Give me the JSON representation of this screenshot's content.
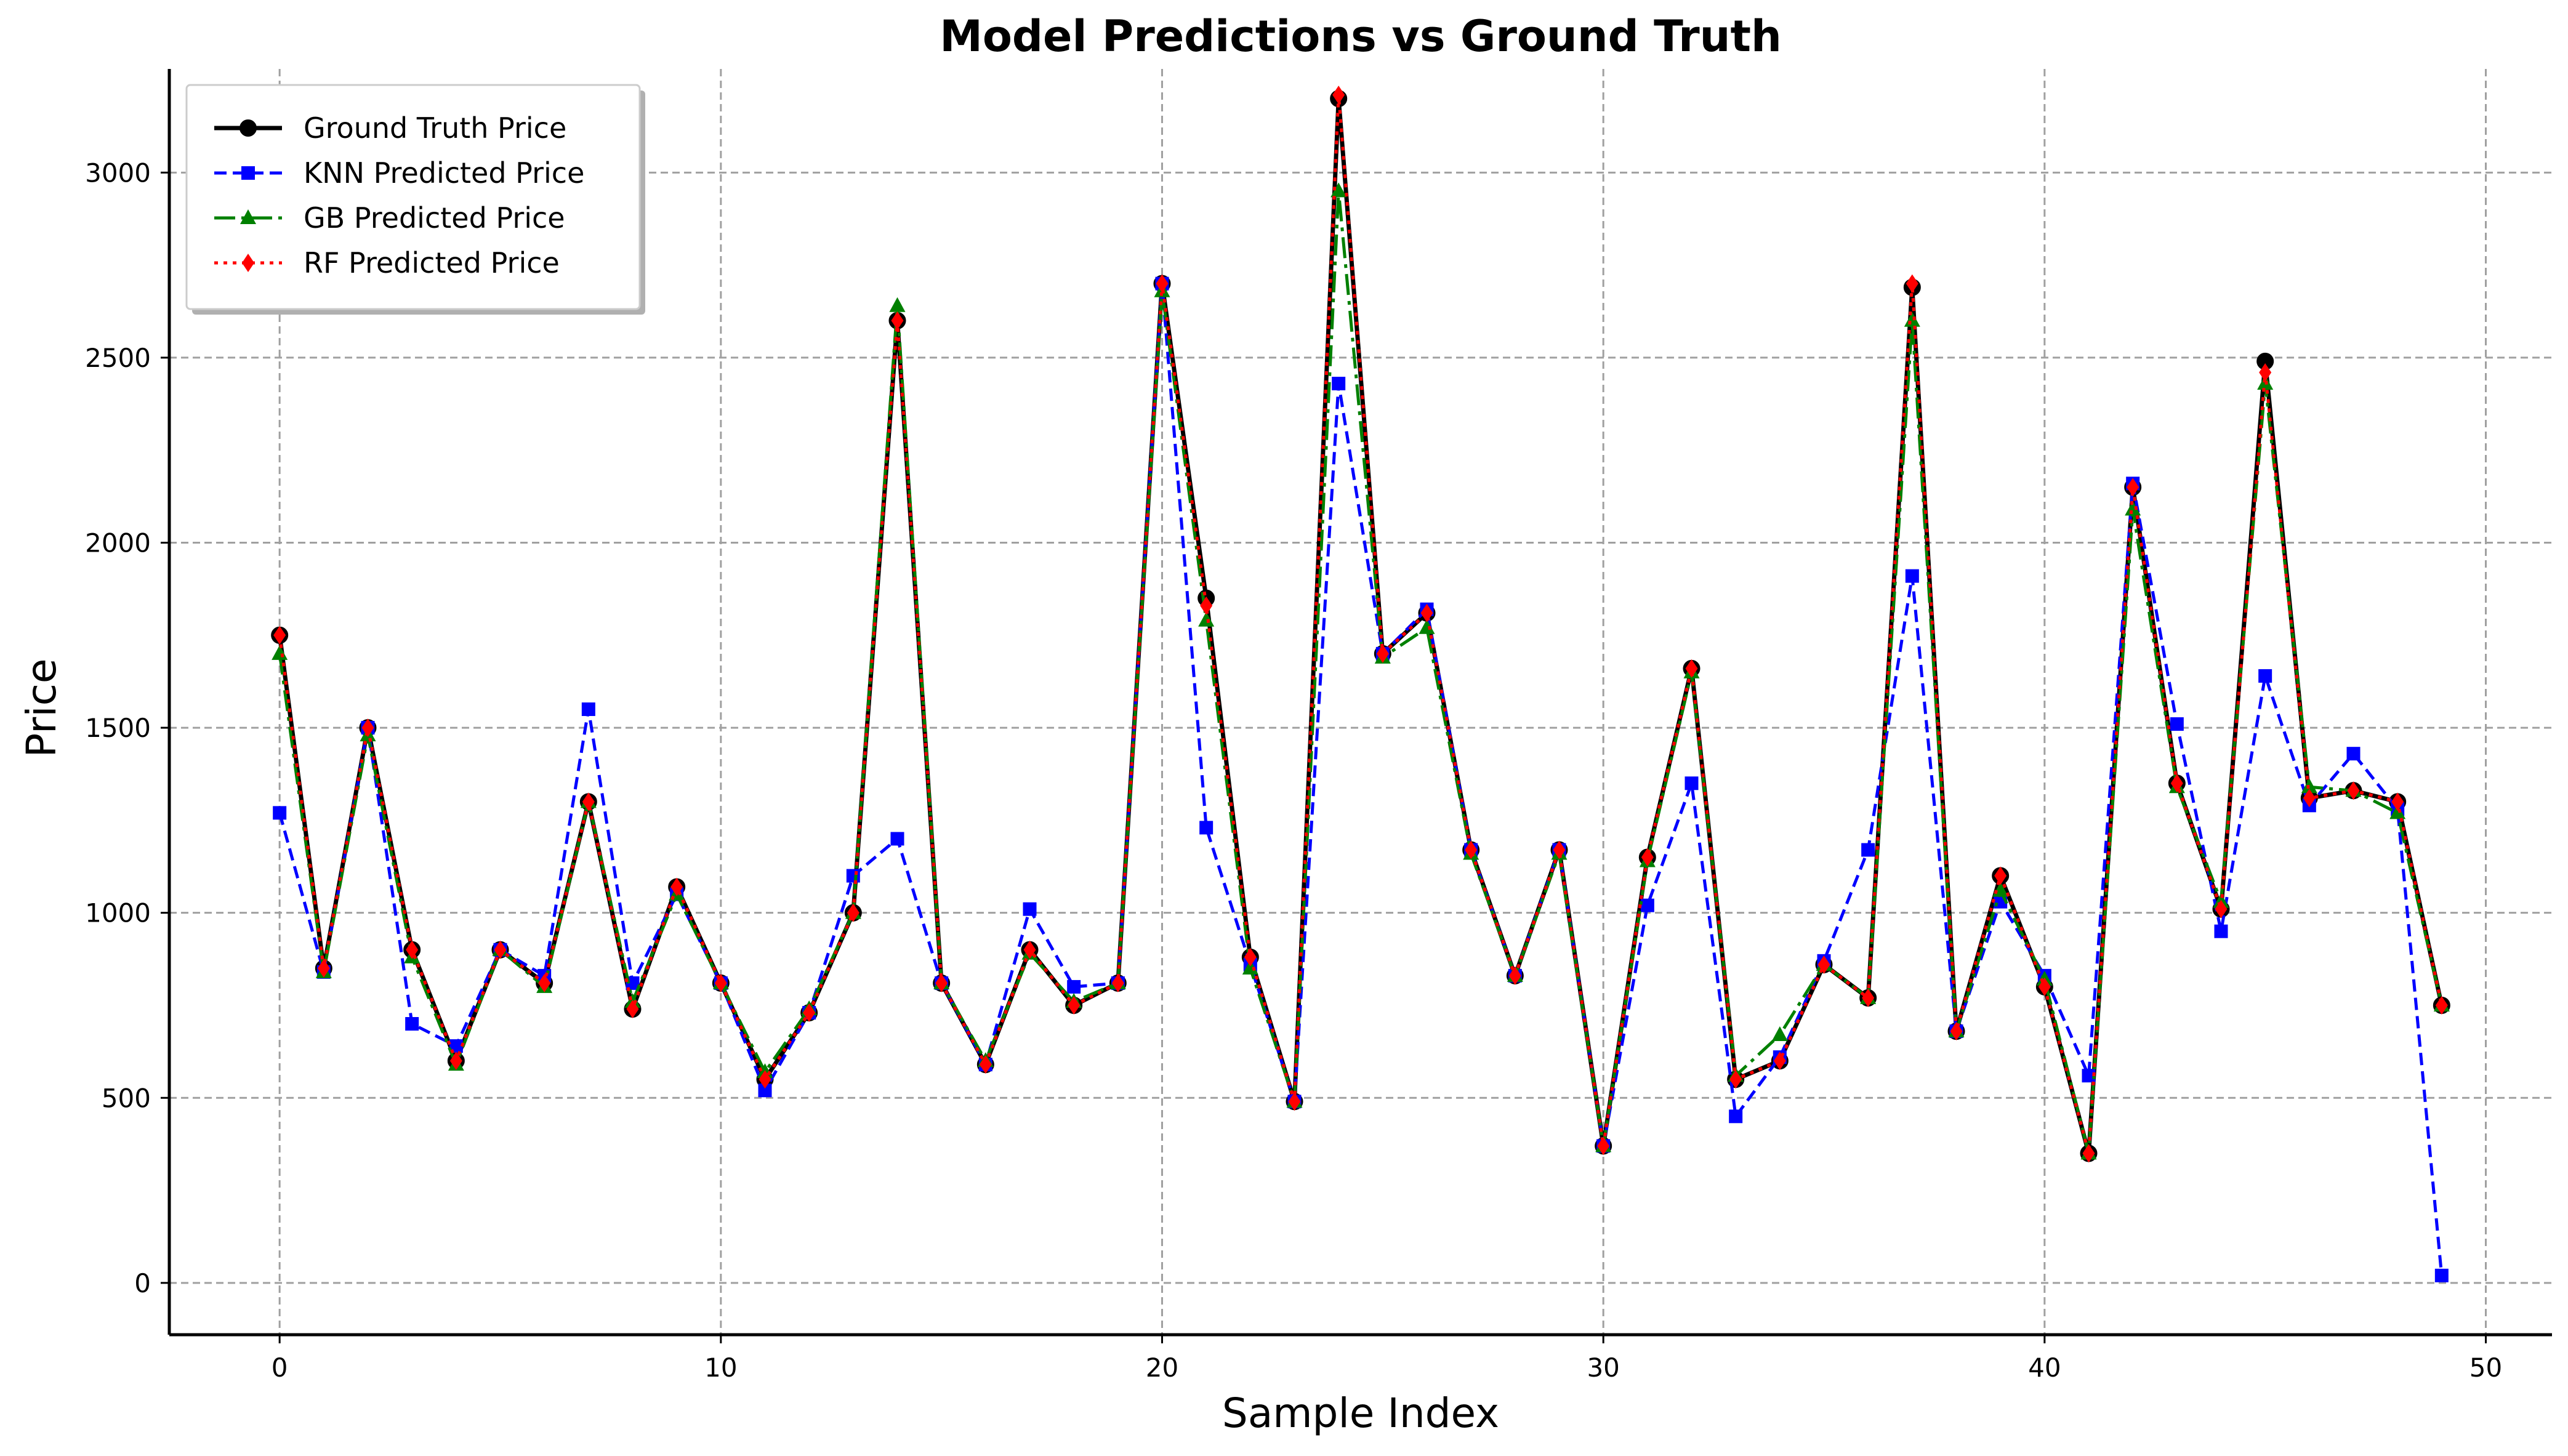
{
  "chart_data": {
    "type": "line",
    "title": "Model Predictions vs Ground Truth",
    "xlabel": "Sample Index",
    "ylabel": "Price",
    "xlim": [
      -2.5,
      51.5
    ],
    "ylim": [
      -140,
      3280
    ],
    "xticks": [
      0,
      10,
      20,
      30,
      40,
      50
    ],
    "yticks": [
      0,
      500,
      1000,
      1500,
      2000,
      2500,
      3000
    ],
    "grid": true,
    "legend_position": "top-left",
    "x": [
      0,
      1,
      2,
      3,
      4,
      5,
      6,
      7,
      8,
      9,
      10,
      11,
      12,
      13,
      14,
      15,
      16,
      17,
      18,
      19,
      20,
      21,
      22,
      23,
      24,
      25,
      26,
      27,
      28,
      29,
      30,
      31,
      32,
      33,
      34,
      35,
      36,
      37,
      38,
      39,
      40,
      41,
      42,
      43,
      44,
      45,
      46,
      47,
      48,
      49
    ],
    "series": [
      {
        "name": "Ground Truth Price",
        "color": "#000000",
        "linestyle": "solid",
        "marker": "circle",
        "values": [
          1750,
          850,
          1500,
          900,
          600,
          900,
          810,
          1300,
          740,
          1070,
          810,
          550,
          730,
          1000,
          2600,
          810,
          590,
          900,
          750,
          810,
          2700,
          1850,
          880,
          490,
          3200,
          1700,
          1810,
          1170,
          830,
          1170,
          370,
          1150,
          1660,
          550,
          600,
          860,
          770,
          2690,
          680,
          1100,
          800,
          350,
          2150,
          1350,
          1010,
          2490,
          1310,
          1330,
          1300,
          750
        ]
      },
      {
        "name": "KNN Predicted Price",
        "color": "#0000ff",
        "linestyle": "dashed",
        "marker": "square",
        "values": [
          1270,
          840,
          1500,
          700,
          640,
          900,
          830,
          1550,
          810,
          1050,
          810,
          520,
          730,
          1100,
          1200,
          810,
          590,
          1010,
          800,
          810,
          2700,
          1230,
          860,
          490,
          2430,
          1700,
          1820,
          1170,
          830,
          1170,
          370,
          1020,
          1350,
          450,
          610,
          870,
          1170,
          1910,
          680,
          1030,
          830,
          560,
          2160,
          1510,
          950,
          1640,
          1290,
          1430,
          1280,
          20
        ]
      },
      {
        "name": "GB Predicted Price",
        "color": "#008000",
        "linestyle": "dashdot",
        "marker": "triangle",
        "values": [
          1700,
          840,
          1480,
          880,
          590,
          900,
          800,
          1300,
          760,
          1050,
          810,
          570,
          740,
          1000,
          2640,
          810,
          600,
          890,
          760,
          810,
          2680,
          1790,
          850,
          490,
          2950,
          1690,
          1770,
          1160,
          830,
          1160,
          370,
          1140,
          1650,
          560,
          670,
          860,
          770,
          2600,
          680,
          1060,
          820,
          350,
          2090,
          1340,
          1030,
          2430,
          1340,
          1330,
          1270,
          750
        ]
      },
      {
        "name": "RF Predicted Price",
        "color": "#ff0000",
        "linestyle": "dotted",
        "marker": "diamond",
        "values": [
          1750,
          850,
          1500,
          900,
          600,
          900,
          810,
          1300,
          740,
          1070,
          810,
          550,
          730,
          1000,
          2600,
          810,
          590,
          900,
          750,
          810,
          2700,
          1830,
          880,
          490,
          3210,
          1700,
          1810,
          1170,
          830,
          1170,
          370,
          1150,
          1660,
          550,
          600,
          860,
          770,
          2700,
          680,
          1100,
          800,
          350,
          2150,
          1350,
          1010,
          2460,
          1310,
          1330,
          1300,
          750
        ]
      }
    ]
  }
}
